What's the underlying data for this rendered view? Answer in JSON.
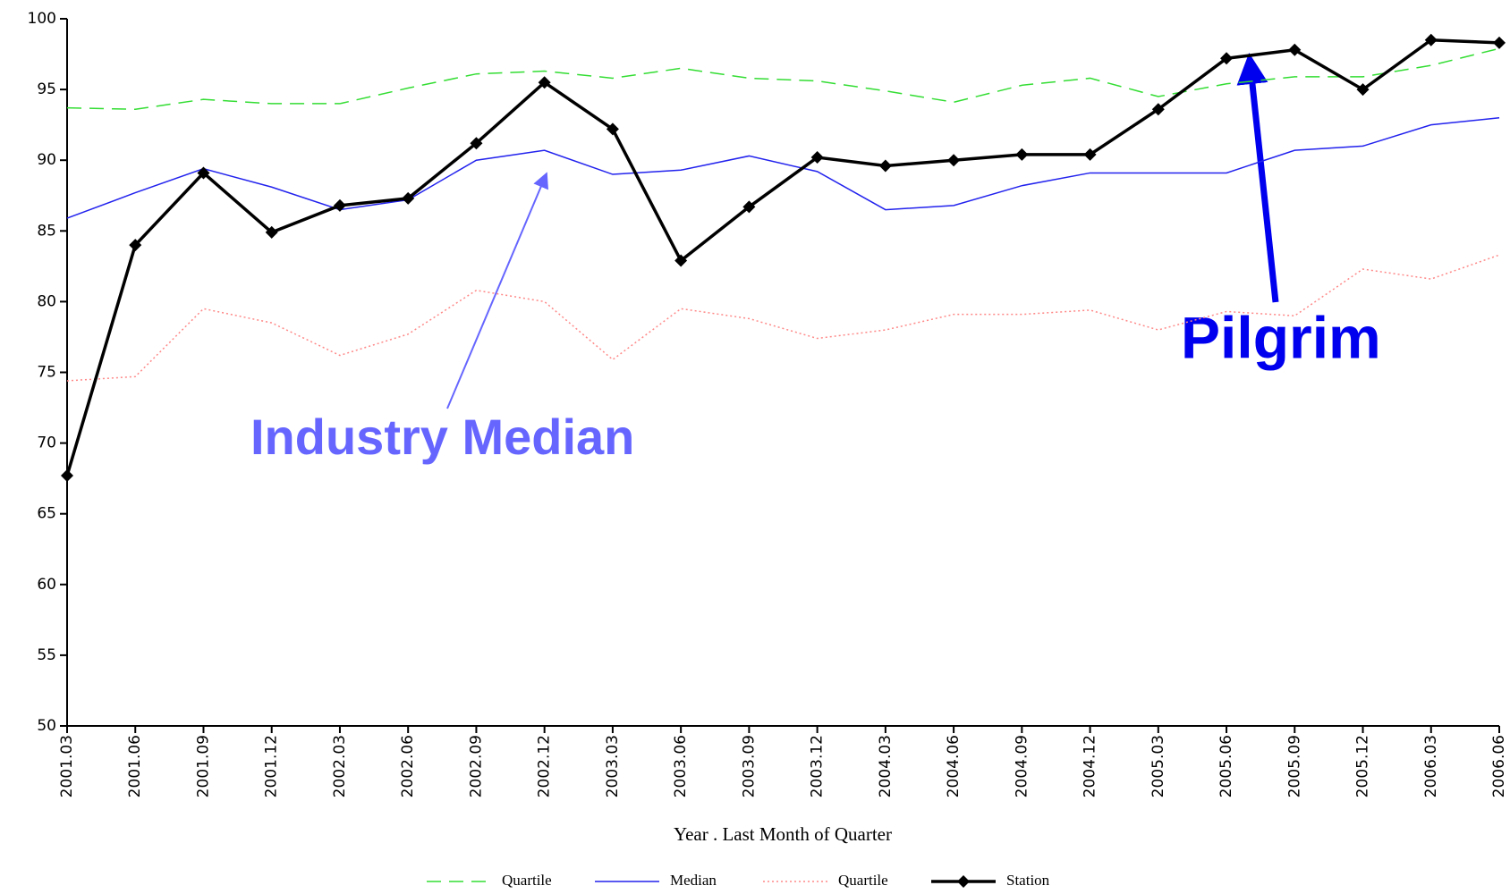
{
  "chart_data": {
    "type": "line",
    "x_label": "Year . Last Month of Quarter",
    "categories": [
      "2001.03",
      "2001.06",
      "2001.09",
      "2001.12",
      "2002.03",
      "2002.06",
      "2002.09",
      "2002.12",
      "2003.03",
      "2003.06",
      "2003.09",
      "2003.12",
      "2004.03",
      "2004.06",
      "2004.09",
      "2004.12",
      "2005.03",
      "2005.06",
      "2005.09",
      "2005.12",
      "2006.03",
      "2006.06"
    ],
    "series": [
      {
        "name": "Quartile",
        "color": "#33dd33",
        "style": "dashed",
        "values": [
          93.7,
          93.6,
          94.3,
          94.0,
          94.0,
          95.1,
          96.1,
          96.3,
          95.8,
          96.5,
          95.8,
          95.6,
          94.9,
          94.1,
          95.3,
          95.8,
          94.5,
          95.4,
          95.9,
          95.9,
          96.7,
          97.9
        ]
      },
      {
        "name": "Median",
        "color": "#2222ee",
        "style": "solid",
        "values": [
          85.9,
          87.7,
          89.4,
          88.1,
          86.5,
          87.2,
          90.0,
          90.7,
          89.0,
          89.3,
          90.3,
          89.2,
          86.5,
          86.8,
          88.2,
          89.1,
          89.1,
          89.1,
          90.7,
          91.0,
          92.5,
          93.0
        ]
      },
      {
        "name": "Quartile",
        "color": "#ff8888",
        "style": "dotted",
        "values": [
          74.4,
          74.7,
          79.5,
          78.5,
          76.2,
          77.7,
          80.8,
          80.0,
          75.9,
          79.5,
          78.8,
          77.4,
          78.0,
          79.1,
          79.1,
          79.4,
          78.0,
          79.3,
          79.0,
          82.3,
          81.6,
          83.3
        ]
      },
      {
        "name": "Station",
        "color": "#000000",
        "style": "solid",
        "markers": true,
        "values": [
          67.7,
          84.0,
          89.1,
          84.9,
          86.8,
          87.3,
          91.2,
          95.5,
          92.2,
          82.9,
          86.7,
          90.2,
          89.6,
          90.0,
          90.4,
          90.4,
          93.6,
          97.2,
          97.8,
          95.0,
          98.5,
          98.3
        ]
      }
    ],
    "ylim": [
      50,
      100
    ],
    "yticks": [
      50,
      55,
      60,
      65,
      70,
      75,
      80,
      85,
      90,
      95,
      100
    ],
    "annotations": [
      {
        "text": "Industry Median",
        "color": "#6666ff"
      },
      {
        "text": "Pilgrim",
        "color": "#0000ee"
      }
    ]
  }
}
